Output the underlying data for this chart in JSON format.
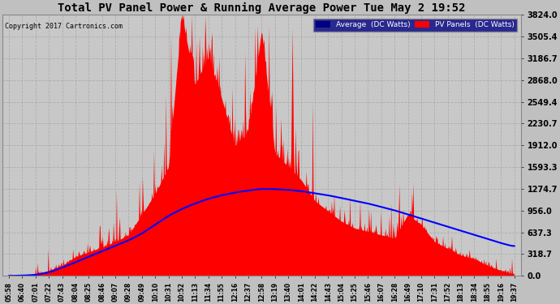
{
  "title": "Total PV Panel Power & Running Average Power Tue May 2 19:52",
  "copyright": "Copyright 2017 Cartronics.com",
  "legend_avg": "Average  (DC Watts)",
  "legend_pv": "PV Panels  (DC Watts)",
  "bg_color": "#c0c0c0",
  "plot_bg_color": "#c8c8c8",
  "title_color": "#000000",
  "grid_color": "#aaaaaa",
  "pv_color": "#ff0000",
  "avg_color": "#0000ff",
  "ymin": 0.0,
  "ymax": 3824.0,
  "yticks": [
    0.0,
    318.7,
    637.3,
    956.0,
    1274.7,
    1593.3,
    1912.0,
    2230.7,
    2549.4,
    2868.0,
    3186.7,
    3505.4,
    3824.0
  ],
  "xtick_labels": [
    "05:58",
    "06:40",
    "07:01",
    "07:22",
    "07:43",
    "08:04",
    "08:25",
    "08:46",
    "09:07",
    "09:28",
    "09:49",
    "10:10",
    "10:31",
    "10:52",
    "11:13",
    "11:34",
    "11:55",
    "12:16",
    "12:37",
    "12:58",
    "13:19",
    "13:40",
    "14:01",
    "14:22",
    "14:43",
    "15:04",
    "15:25",
    "15:46",
    "16:07",
    "16:28",
    "16:49",
    "17:10",
    "17:31",
    "17:52",
    "18:13",
    "18:34",
    "18:55",
    "19:16",
    "19:37"
  ],
  "pv_data": [
    0,
    5,
    20,
    80,
    150,
    280,
    350,
    420,
    500,
    600,
    900,
    1200,
    1593,
    3824,
    2800,
    3200,
    2600,
    1900,
    2100,
    3600,
    1800,
    1600,
    1400,
    1100,
    950,
    800,
    700,
    650,
    600,
    550,
    900,
    750,
    500,
    400,
    300,
    250,
    150,
    80,
    20
  ],
  "avg_data": [
    0,
    5,
    15,
    50,
    120,
    200,
    280,
    360,
    440,
    520,
    620,
    750,
    880,
    980,
    1060,
    1130,
    1180,
    1220,
    1250,
    1274,
    1270,
    1260,
    1240,
    1210,
    1180,
    1140,
    1100,
    1060,
    1010,
    960,
    900,
    840,
    780,
    720,
    660,
    600,
    540,
    480,
    430
  ]
}
